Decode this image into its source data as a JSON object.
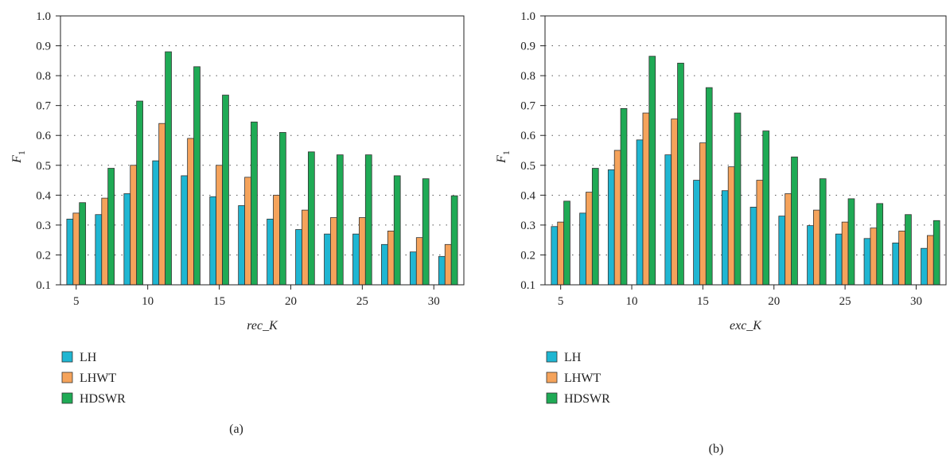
{
  "colors": {
    "LH": "#1fb6d2",
    "LHWT": "#f5a35b",
    "HDSWR": "#1faa55"
  },
  "chart_data": [
    {
      "type": "bar",
      "panel_label": "(a)",
      "xlabel": "rec_K",
      "ylabel": "F",
      "ylabel_sub": "1",
      "ylim": [
        0.1,
        1.0
      ],
      "yticks": [
        "0.1",
        "0.2",
        "0.3",
        "0.4",
        "0.5",
        "0.6",
        "0.7",
        "0.8",
        "0.9",
        "1.0"
      ],
      "xticks": [
        "5",
        "10",
        "15",
        "20",
        "25",
        "30"
      ],
      "xtick_values": [
        5,
        10,
        15,
        20,
        25,
        30
      ],
      "categories": [
        5,
        7,
        9,
        11,
        13,
        15,
        17,
        19,
        21,
        23,
        25,
        27,
        29,
        31
      ],
      "grid": "dotted horizontal",
      "legend_position": "below-left",
      "series": [
        {
          "name": "LH",
          "values": [
            0.32,
            0.335,
            0.405,
            0.515,
            0.465,
            0.395,
            0.365,
            0.32,
            0.285,
            0.27,
            0.27,
            0.235,
            0.21,
            0.195
          ]
        },
        {
          "name": "LHWT",
          "values": [
            0.34,
            0.39,
            0.5,
            0.64,
            0.59,
            0.5,
            0.46,
            0.4,
            0.35,
            0.325,
            0.325,
            0.28,
            0.258,
            0.235
          ]
        },
        {
          "name": "HDSWR",
          "values": [
            0.375,
            0.49,
            0.715,
            0.88,
            0.83,
            0.735,
            0.645,
            0.61,
            0.545,
            0.535,
            0.535,
            0.465,
            0.455,
            0.398
          ]
        }
      ]
    },
    {
      "type": "bar",
      "panel_label": "(b)",
      "xlabel": "exc_K",
      "ylabel": "F",
      "ylabel_sub": "1",
      "ylim": [
        0.1,
        1.0
      ],
      "yticks": [
        "0.1",
        "0.2",
        "0.3",
        "0.4",
        "0.5",
        "0.6",
        "0.7",
        "0.8",
        "0.9",
        "1.0"
      ],
      "xticks": [
        "5",
        "10",
        "15",
        "20",
        "25",
        "30"
      ],
      "xtick_values": [
        5,
        10,
        15,
        20,
        25,
        30
      ],
      "categories": [
        5,
        7,
        9,
        11,
        13,
        15,
        17,
        19,
        21,
        23,
        25,
        27,
        29,
        31
      ],
      "grid": "dotted horizontal",
      "legend_position": "below-left",
      "series": [
        {
          "name": "LH",
          "values": [
            0.295,
            0.34,
            0.485,
            0.585,
            0.535,
            0.45,
            0.415,
            0.36,
            0.33,
            0.298,
            0.27,
            0.255,
            0.24,
            0.222
          ]
        },
        {
          "name": "LHWT",
          "values": [
            0.31,
            0.41,
            0.55,
            0.675,
            0.655,
            0.575,
            0.495,
            0.45,
            0.405,
            0.35,
            0.31,
            0.29,
            0.28,
            0.265
          ]
        },
        {
          "name": "HDSWR",
          "values": [
            0.38,
            0.49,
            0.69,
            0.865,
            0.842,
            0.76,
            0.675,
            0.615,
            0.528,
            0.455,
            0.388,
            0.372,
            0.335,
            0.315
          ]
        }
      ]
    }
  ]
}
